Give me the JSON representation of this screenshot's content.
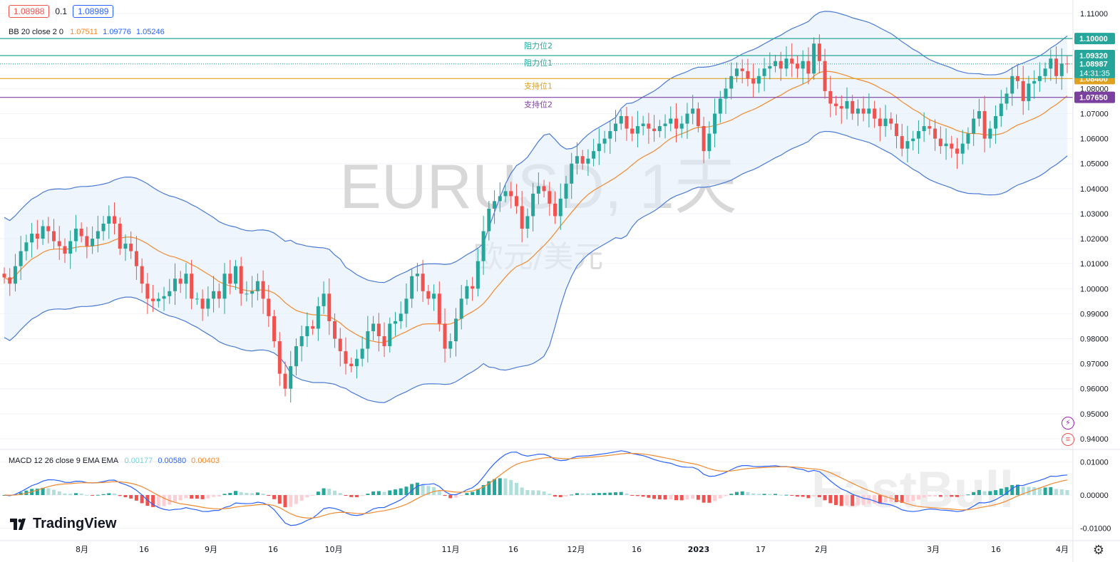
{
  "header": {
    "bid": "1.08988",
    "spread": "0.1",
    "ask": "1.08989"
  },
  "bb_legend": {
    "label": "BB 20 close 2 0",
    "basis": "1.07511",
    "upper": "1.09776",
    "lower": "1.05246"
  },
  "macd_legend": {
    "label": "MACD 12 26 close 9 EMA EMA",
    "hist": "0.00177",
    "macd": "0.00580",
    "signal": "0.00403"
  },
  "watermark": {
    "symbol": "EURUSD, 1天",
    "name": "欧元/美元"
  },
  "logo_text": "TradingView",
  "fastbull_text": "FastBull",
  "colors": {
    "up": "#26a69a",
    "down": "#ef5350",
    "band": "#4a7ad4",
    "basis": "#f08a30",
    "resistance": "#26a69a",
    "support1": "#e0a020",
    "support2": "#7b3fa0"
  },
  "chart_data": {
    "type": "candlestick",
    "symbol": "EURUSD",
    "timeframe": "1天",
    "price_axis_ticks": [
      "1.11000",
      "1.10000",
      "1.09000",
      "1.08000",
      "1.07000",
      "1.06000",
      "1.05000",
      "1.04000",
      "1.03000",
      "1.02000",
      "1.01000",
      "1.00000",
      "0.99000",
      "0.98000",
      "0.97000",
      "0.96000",
      "0.95000",
      "0.94000"
    ],
    "ylim": [
      0.936,
      1.114
    ],
    "macd_axis_ticks": [
      "0.01000",
      "0.00000",
      "-0.01000"
    ],
    "macd_ylim": [
      -0.0135,
      0.0135
    ],
    "time_axis_labels": [
      "8月",
      "16",
      "9月",
      "16",
      "10月",
      "11月",
      "16",
      "12月",
      "16",
      "2023",
      "17",
      "2月",
      "3月",
      "16",
      "4月"
    ],
    "levels": [
      {
        "label": "阻力位2",
        "price": 1.1,
        "tag": "1.10000",
        "color": "#26a69a"
      },
      {
        "label": "阻力位1",
        "price": 1.0932,
        "tag": "1.09320",
        "color": "#26a69a"
      },
      {
        "label": "支持位1",
        "price": 1.084,
        "tag": "1.08400",
        "color": "#e0a020"
      },
      {
        "label": "支持位2",
        "price": 1.0765,
        "tag": "1.07650",
        "color": "#7b3fa0"
      }
    ],
    "last_price": {
      "value": 1.08987,
      "tag": "1.08987",
      "countdown": "14:31:35"
    },
    "closes": [
      1.0045,
      1.002,
      1.009,
      1.015,
      1.0185,
      1.022,
      1.02,
      1.025,
      1.023,
      1.019,
      1.017,
      1.014,
      1.019,
      1.024,
      1.021,
      1.017,
      1.02,
      1.023,
      1.026,
      1.029,
      1.026,
      1.016,
      1.018,
      1.015,
      1.009,
      1.002,
      0.996,
      0.995,
      0.996,
      0.997,
      0.999,
      1.004,
      1.002,
      1.006,
      0.996,
      0.996,
      0.992,
      0.996,
      0.999,
      0.996,
      1.006,
      1.002,
      1.009,
      0.998,
      0.998,
      0.999,
      1.003,
      0.996,
      0.989,
      0.979,
      0.966,
      0.96,
      0.969,
      0.977,
      0.981,
      0.985,
      0.984,
      0.993,
      0.998,
      0.987,
      0.98,
      0.975,
      0.97,
      0.969,
      0.972,
      0.976,
      0.983,
      0.986,
      0.981,
      0.977,
      0.986,
      0.987,
      0.99,
      0.996,
      1.005,
      1.006,
      0.999,
      0.996,
      0.998,
      0.986,
      0.976,
      0.979,
      0.988,
      0.996,
      1.001,
      1.0,
      1.011,
      1.023,
      1.032,
      1.035,
      1.037,
      1.039,
      1.037,
      1.033,
      1.024,
      1.029,
      1.038,
      1.041,
      1.039,
      1.034,
      1.029,
      1.036,
      1.042,
      1.05,
      1.053,
      1.05,
      1.052,
      1.055,
      1.058,
      1.06,
      1.063,
      1.066,
      1.069,
      1.064,
      1.062,
      1.065,
      1.066,
      1.064,
      1.063,
      1.065,
      1.066,
      1.068,
      1.064,
      1.066,
      1.07,
      1.072,
      1.065,
      1.055,
      1.062,
      1.07,
      1.076,
      1.08,
      1.085,
      1.088,
      1.087,
      1.084,
      1.082,
      1.085,
      1.088,
      1.089,
      1.091,
      1.088,
      1.092,
      1.09,
      1.088,
      1.091,
      1.086,
      1.098,
      1.091,
      1.079,
      1.074,
      1.073,
      1.072,
      1.075,
      1.07,
      1.072,
      1.07,
      1.072,
      1.068,
      1.065,
      1.068,
      1.066,
      1.061,
      1.056,
      1.059,
      1.06,
      1.063,
      1.065,
      1.064,
      1.06,
      1.057,
      1.058,
      1.056,
      1.054,
      1.058,
      1.062,
      1.068,
      1.071,
      1.06,
      1.064,
      1.069,
      1.074,
      1.078,
      1.085,
      1.083,
      1.075,
      1.082,
      1.083,
      1.085,
      1.088,
      1.092,
      1.085,
      1.09,
      1.0899
    ]
  }
}
